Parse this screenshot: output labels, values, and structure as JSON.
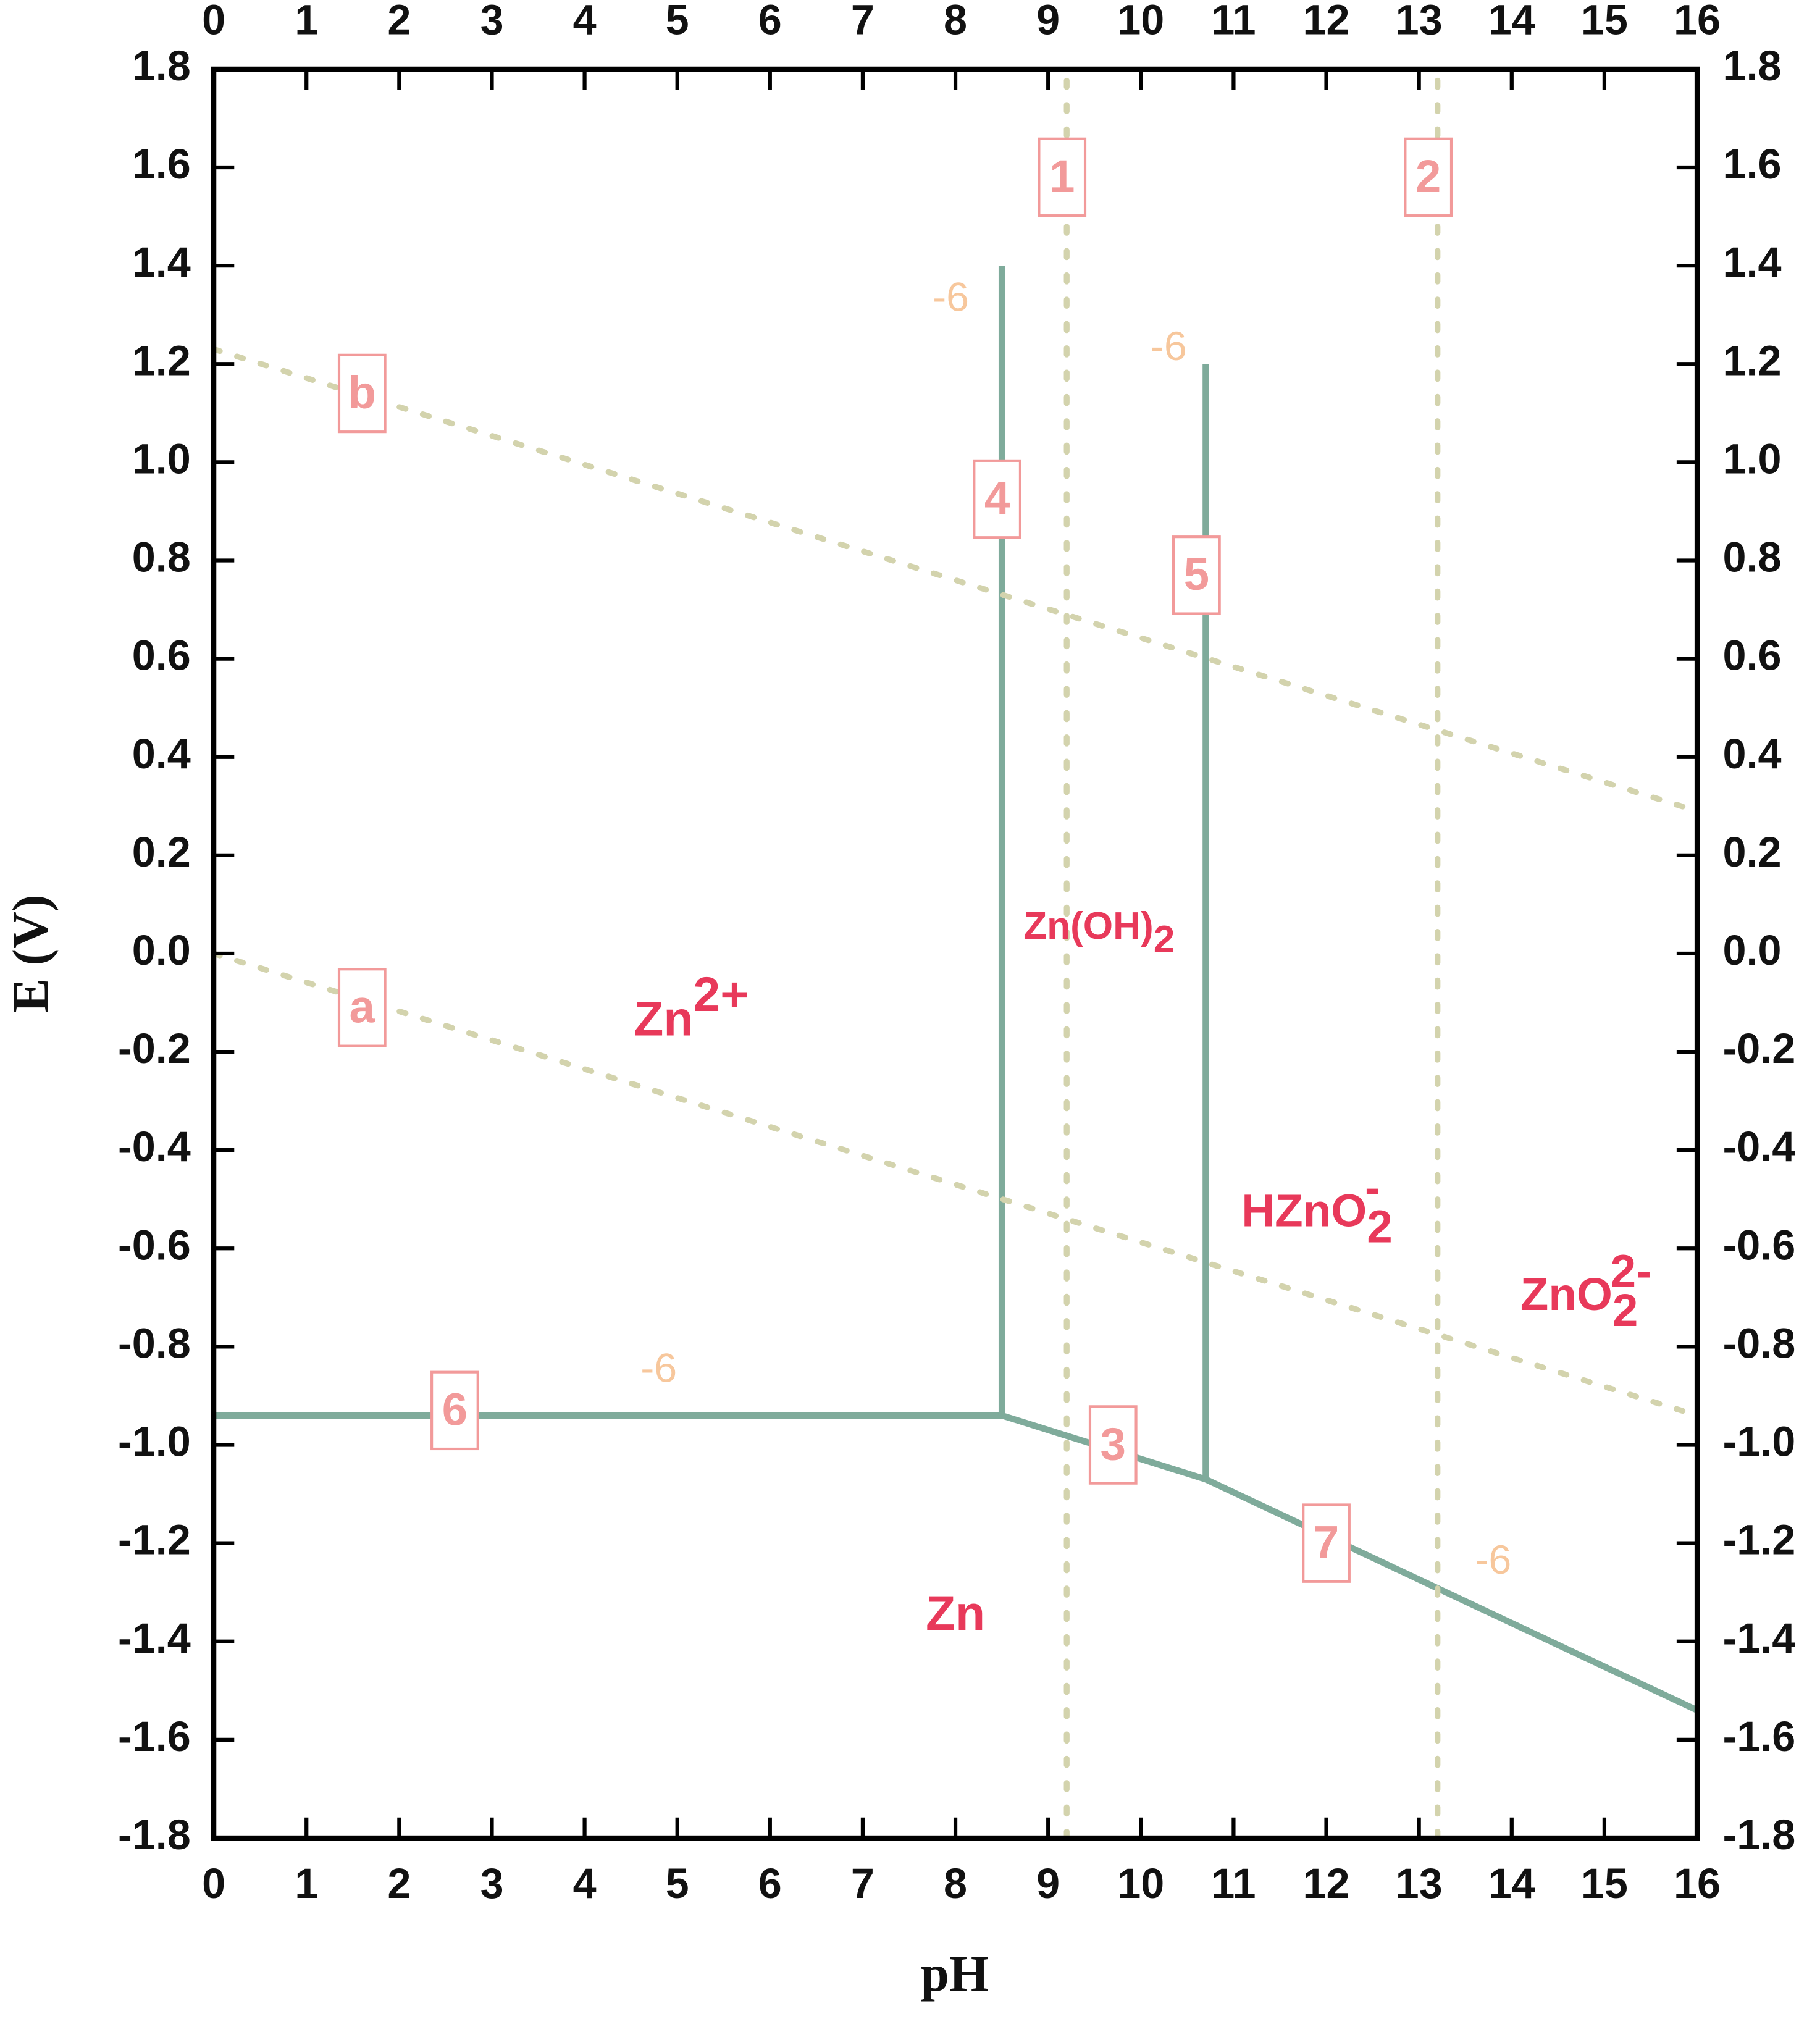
{
  "chart_data": {
    "type": "line",
    "x_label": "pH",
    "y_label": "E (V)",
    "xlim": [
      0,
      16
    ],
    "ylim": [
      -1.8,
      1.8
    ],
    "xticks": [
      0,
      1,
      2,
      3,
      4,
      5,
      6,
      7,
      8,
      9,
      10,
      11,
      12,
      13,
      14,
      15,
      16
    ],
    "yticks": [
      1.8,
      1.6,
      1.4,
      1.2,
      {
        "value": 1,
        "label": "1.0"
      },
      0.8,
      0.6,
      0.4,
      0.2,
      {
        "value": 0,
        "label": "0.0"
      },
      -0.2,
      -0.4,
      -0.6,
      -0.8,
      {
        "value": -1,
        "label": "-1.0"
      },
      -1.2,
      -1.4,
      -1.6,
      -1.8
    ],
    "series": [
      {
        "name": "6",
        "color": "#7fab9b",
        "style": "solid",
        "x": [
          0,
          8.5
        ],
        "values": [
          -0.94,
          -0.94
        ],
        "label_at": [
          2.6,
          -0.93
        ]
      },
      {
        "name": "3",
        "color": "#7fab9b",
        "style": "solid",
        "x": [
          8.5,
          10.7
        ],
        "values": [
          -0.94,
          -1.07
        ],
        "label_at": [
          9.7,
          -1.0
        ]
      },
      {
        "name": "7",
        "color": "#7fab9b",
        "style": "solid",
        "x": [
          10.7,
          16
        ],
        "values": [
          -1.07,
          -1.54
        ],
        "label_at": [
          12.0,
          -1.2
        ]
      },
      {
        "name": "4",
        "color": "#7fab9b",
        "style": "solid",
        "x": [
          8.5,
          8.5
        ],
        "values": [
          -0.94,
          1.4
        ],
        "label_at": [
          8.45,
          0.925
        ]
      },
      {
        "name": "5",
        "color": "#7fab9b",
        "style": "solid",
        "x": [
          10.7,
          10.7
        ],
        "values": [
          -1.07,
          1.2
        ],
        "label_at": [
          10.6,
          0.77
        ]
      },
      {
        "name": "a",
        "color": "#d3d3ad",
        "style": "dotted",
        "x": [
          0,
          16
        ],
        "values": [
          0,
          -0.94
        ],
        "label_at": [
          1.6,
          -0.11
        ]
      },
      {
        "name": "b",
        "color": "#d3d3ad",
        "style": "dotted",
        "x": [
          0,
          16
        ],
        "values": [
          1.23,
          0.29
        ],
        "label_at": [
          1.6,
          1.14
        ]
      },
      {
        "name": "1",
        "color": "#d3d3ad",
        "style": "dotted",
        "x": [
          9.2,
          9.2
        ],
        "values": [
          -1.8,
          1.8
        ],
        "label_at": [
          9.15,
          1.58
        ]
      },
      {
        "name": "2",
        "color": "#d3d3ad",
        "style": "dotted",
        "x": [
          13.2,
          13.2
        ],
        "values": [
          -1.8,
          1.8
        ],
        "label_at": [
          13.1,
          1.58
        ]
      }
    ],
    "annotations": [
      {
        "text": "-6",
        "x": 7.95,
        "y": 1.33
      },
      {
        "text": "-6",
        "x": 10.3,
        "y": 1.23
      },
      {
        "text": "-6",
        "x": 4.8,
        "y": -0.85
      },
      {
        "text": "-6",
        "x": 13.8,
        "y": -1.24
      }
    ],
    "regions": [
      {
        "text": "Zn",
        "sup": "2+",
        "x": 5.15,
        "y": -0.14,
        "size": 38
      },
      {
        "text": "Zn(OH)",
        "sub": "2",
        "x": 9.55,
        "y": 0.05,
        "size": 30
      },
      {
        "text": "HZnO",
        "sub": "2",
        "sup": "-",
        "x": 11.9,
        "y": -0.53,
        "size": 36
      },
      {
        "text": "ZnO",
        "sub": "2",
        "sup": "2-",
        "x": 14.8,
        "y": -0.7,
        "size": 36
      },
      {
        "text": "Zn",
        "x": 8.0,
        "y": -1.35,
        "size": 38
      }
    ],
    "annotation_color": "#f7c79c",
    "label_color": "#f29a9a",
    "region_color": "#e8395a"
  }
}
